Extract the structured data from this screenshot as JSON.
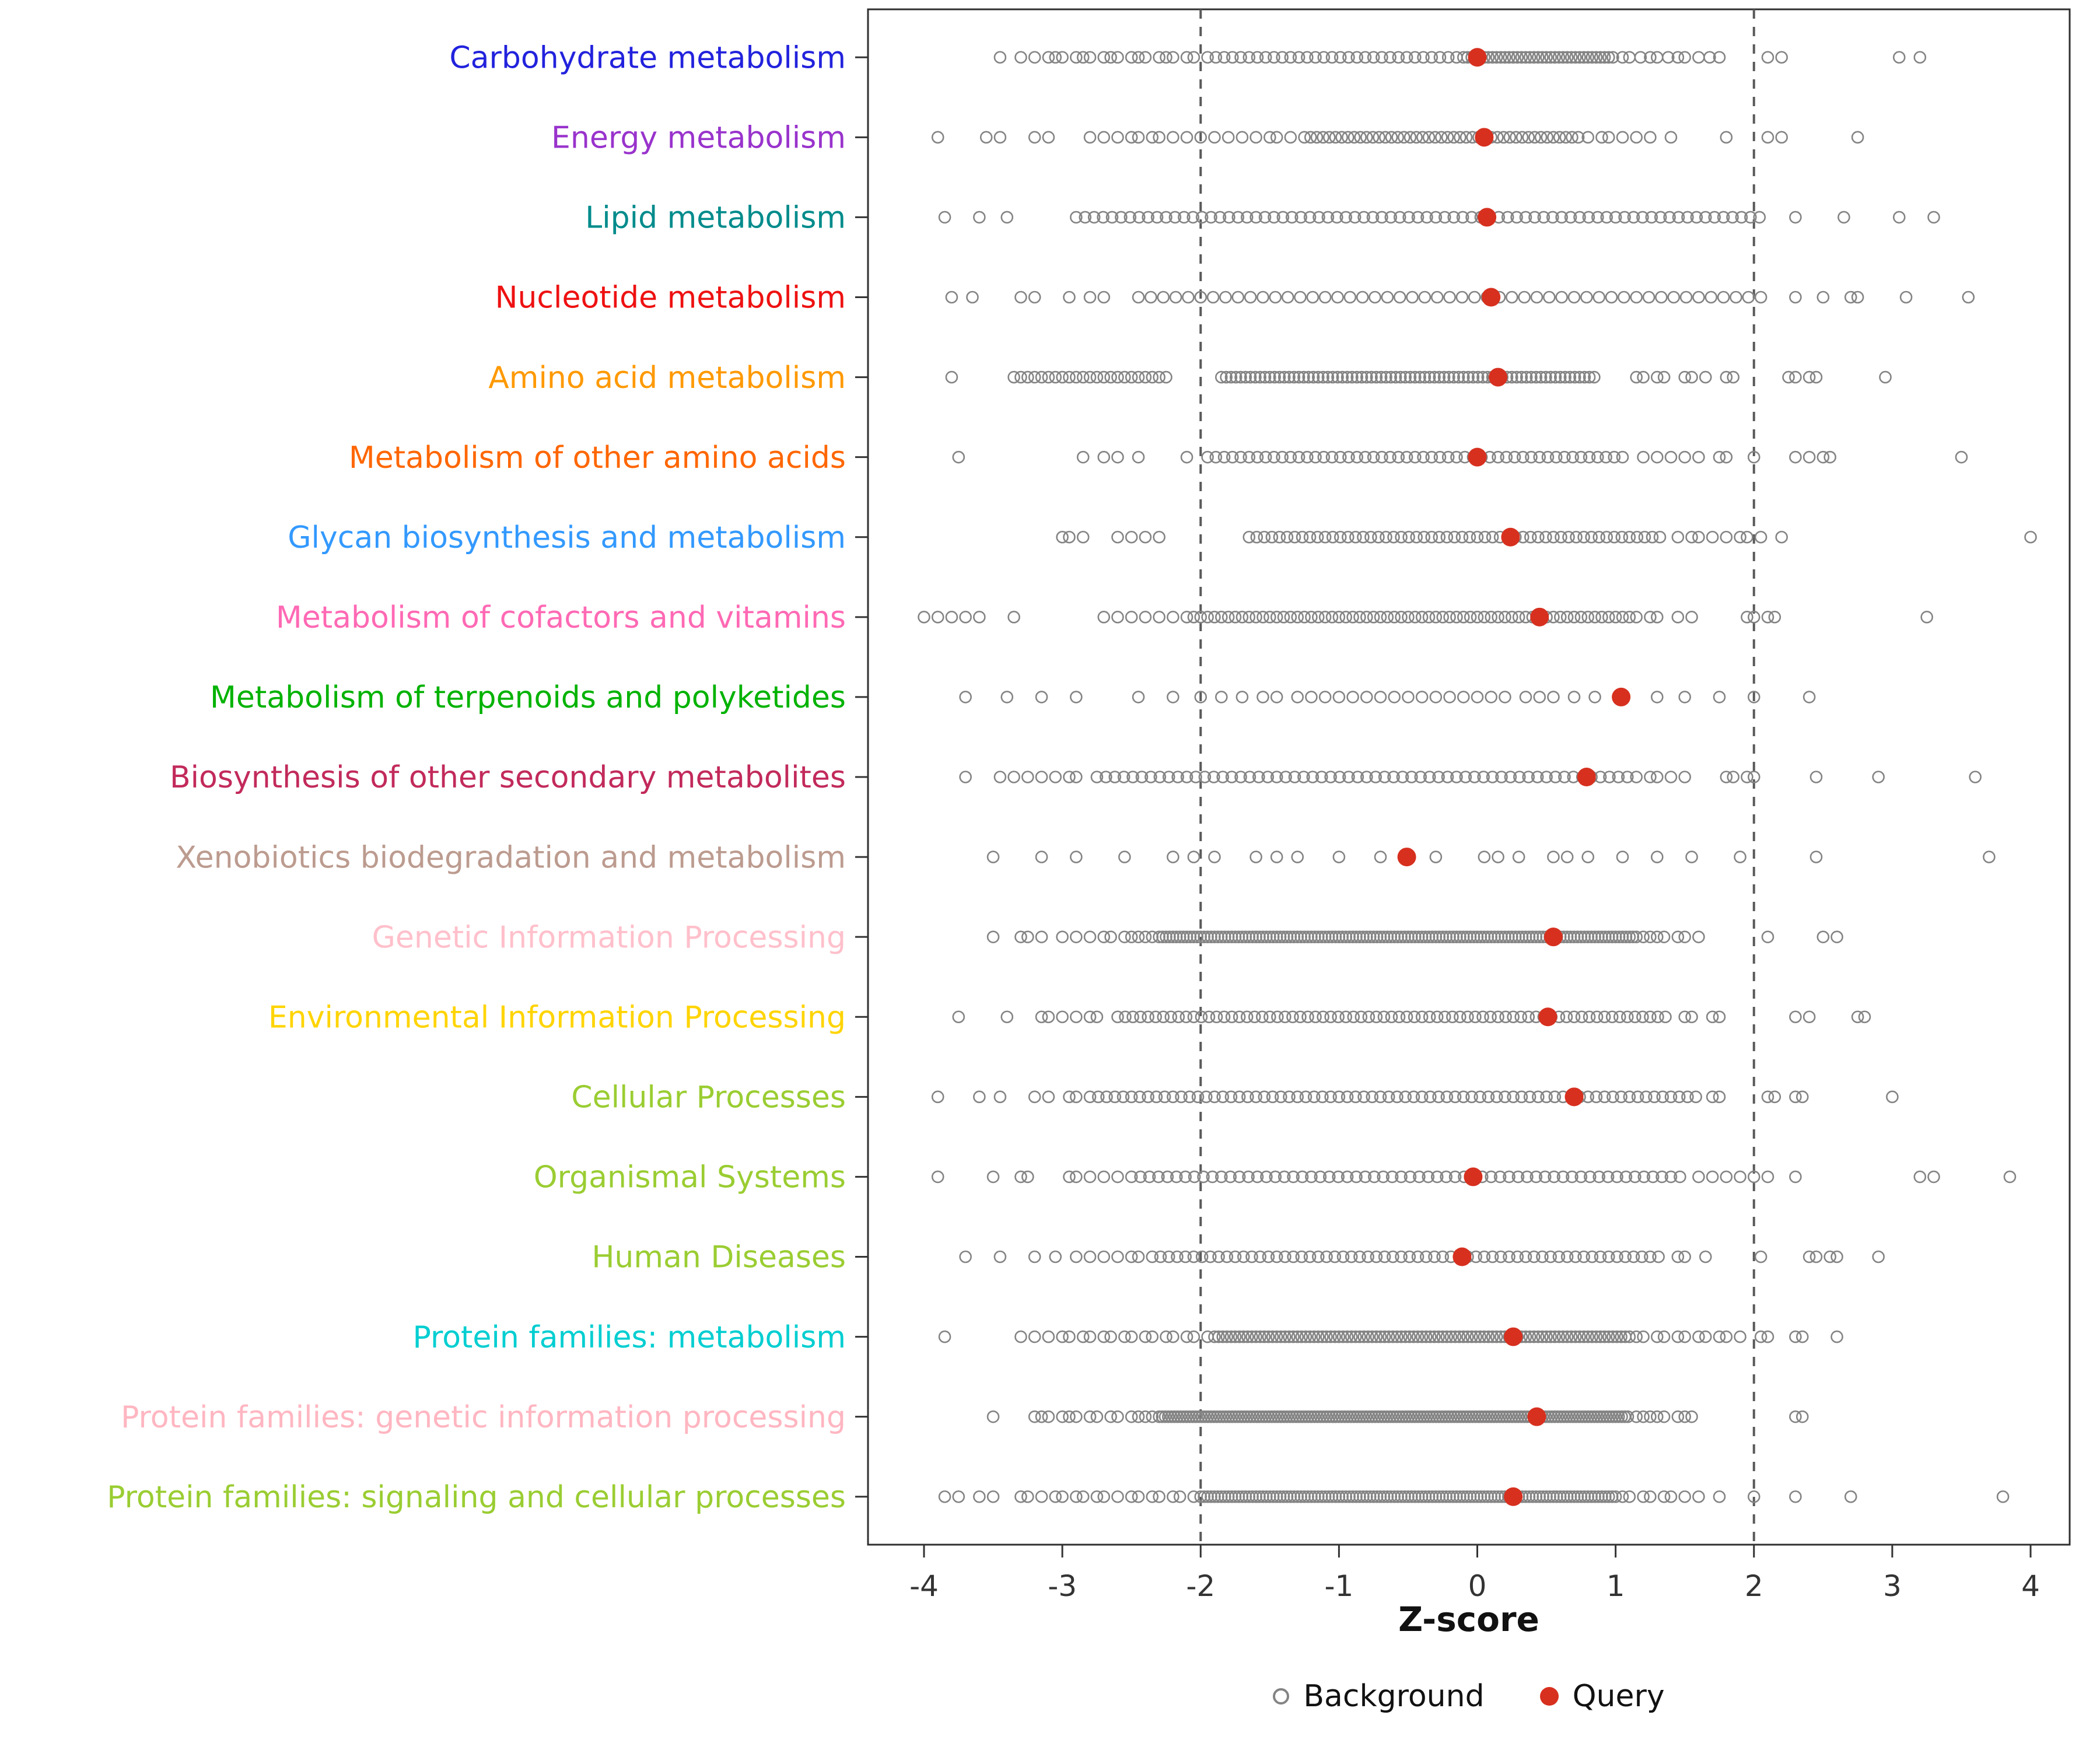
{
  "chart_data": {
    "type": "scatter",
    "title": "",
    "xlabel": "Z-score",
    "ylabel": "",
    "xlim": [
      -4.4,
      4.3
    ],
    "x_ticks": [
      -4,
      -3,
      -2,
      -1,
      0,
      1,
      2,
      3,
      4
    ],
    "reference_lines": [
      -2,
      2
    ],
    "grid": false,
    "legend_position": "bottom",
    "legend": {
      "background": "Background",
      "query": "Query"
    },
    "colors": {
      "background_point": "#848484",
      "query_point": "#D7301F",
      "reference_line": "#5A5A5A",
      "panel_border": "#2F2F2F",
      "axis_text": "#333333",
      "tick": "#333333"
    },
    "rows": [
      {
        "label": "Carbohydrate metabolism",
        "color": "#2222DD",
        "query": 0.0,
        "points": [
          -3.45,
          -3.3,
          -3.2,
          -3.1,
          -3.05,
          -3.0,
          -2.9,
          -2.85,
          -2.8,
          -2.7,
          -2.65,
          -2.6,
          -2.5,
          -2.45,
          -2.4,
          -2.3,
          -2.25,
          -2.2,
          -2.1,
          -2.05,
          1.05,
          1.1,
          1.18,
          1.25,
          1.3,
          1.38,
          1.45,
          1.5,
          1.6,
          1.68,
          1.75,
          2.1,
          2.2,
          3.05,
          3.2
        ],
        "bands": [
          [
            -1.95,
            -0.15,
            0.06
          ],
          [
            -0.1,
            1.0,
            0.03
          ]
        ]
      },
      {
        "label": "Energy metabolism",
        "color": "#9933CC",
        "query": 0.05,
        "points": [
          -3.9,
          -3.55,
          -3.45,
          -3.2,
          -3.1,
          -2.8,
          -2.7,
          -2.6,
          -2.5,
          -2.45,
          -2.35,
          -2.3,
          -2.2,
          -2.1,
          -2.0,
          -1.9,
          -1.8,
          -1.7,
          -1.6,
          -1.5,
          -1.45,
          -1.35,
          0.8,
          0.9,
          0.95,
          1.05,
          1.15,
          1.25,
          1.4,
          1.8,
          2.1,
          2.2,
          2.75
        ],
        "bands": [
          [
            -1.25,
            0.75,
            0.045
          ]
        ]
      },
      {
        "label": "Lipid metabolism",
        "color": "#008B8B",
        "query": 0.07,
        "points": [
          -3.85,
          -3.6,
          -3.4,
          2.3,
          2.65,
          3.05,
          3.3
        ],
        "bands": [
          [
            -2.9,
            2.1,
            0.065
          ]
        ]
      },
      {
        "label": "Nucleotide metabolism",
        "color": "#EE1111",
        "query": 0.1,
        "points": [
          -3.8,
          -3.65,
          -3.3,
          -3.2,
          -2.95,
          -2.8,
          -2.7,
          2.3,
          2.5,
          2.7,
          2.75,
          3.1,
          3.55
        ],
        "bands": [
          [
            -2.45,
            2.05,
            0.09
          ]
        ]
      },
      {
        "label": "Amino acid metabolism",
        "color": "#FF9900",
        "query": 0.15,
        "points": [
          -3.8,
          1.15,
          1.2,
          1.3,
          1.35,
          1.5,
          1.55,
          1.65,
          1.8,
          1.85,
          2.25,
          2.3,
          2.4,
          2.45,
          2.95
        ],
        "bands": [
          [
            -3.35,
            -2.25,
            0.05
          ],
          [
            -1.85,
            0.85,
            0.035
          ]
        ]
      },
      {
        "label": "Metabolism of other amino acids",
        "color": "#FF6600",
        "query": 0.0,
        "points": [
          -3.75,
          -2.85,
          -2.7,
          -2.6,
          -2.45,
          -2.1,
          1.2,
          1.3,
          1.4,
          1.5,
          1.6,
          1.75,
          1.8,
          2.0,
          2.3,
          2.4,
          2.5,
          2.55,
          3.5
        ],
        "bands": [
          [
            -1.95,
            1.1,
            0.06
          ]
        ]
      },
      {
        "label": "Glycan biosynthesis and metabolism",
        "color": "#3399FF",
        "query": 0.24,
        "points": [
          -3.0,
          -2.95,
          -2.85,
          -2.6,
          -2.5,
          -2.4,
          -2.3,
          1.45,
          1.55,
          1.6,
          1.7,
          1.8,
          1.9,
          1.95,
          2.05,
          2.2,
          4.0
        ],
        "bands": [
          [
            -1.65,
            1.35,
            0.055
          ]
        ]
      },
      {
        "label": "Metabolism of cofactors and vitamins",
        "color": "#FF69B4",
        "query": 0.45,
        "points": [
          -4.0,
          -3.9,
          -3.8,
          -3.7,
          -3.6,
          -3.35,
          -2.7,
          -2.6,
          -2.5,
          -2.4,
          -2.3,
          -2.2,
          1.15,
          1.25,
          1.3,
          1.45,
          1.55,
          1.95,
          2.0,
          2.1,
          2.15,
          3.25
        ],
        "bands": [
          [
            -2.1,
            1.1,
            0.05
          ]
        ]
      },
      {
        "label": "Metabolism of terpenoids and polyketides",
        "color": "#00B200",
        "query": 1.04,
        "points": [
          -3.7,
          -3.4,
          -3.15,
          -2.9,
          -2.45,
          -2.2,
          -2.0,
          -1.85,
          -1.7,
          -1.55,
          -1.45,
          -1.3,
          -1.2,
          -1.1,
          -1.0,
          -0.9,
          -0.8,
          -0.7,
          -0.6,
          -0.5,
          -0.4,
          -0.3,
          -0.2,
          -0.1,
          0.0,
          0.1,
          0.2,
          0.35,
          0.45,
          0.55,
          0.7,
          0.85,
          1.3,
          1.5,
          1.75,
          2.0,
          2.4
        ],
        "bands": []
      },
      {
        "label": "Biosynthesis of other secondary metabolites",
        "color": "#C22A5B",
        "query": 0.79,
        "points": [
          -3.7,
          -3.45,
          -3.35,
          -3.25,
          -3.15,
          -3.05,
          -2.95,
          -2.9,
          1.25,
          1.3,
          1.4,
          1.5,
          1.8,
          1.85,
          1.95,
          2.0,
          2.45,
          2.9,
          3.6
        ],
        "bands": [
          [
            -2.75,
            1.15,
            0.065
          ]
        ]
      },
      {
        "label": "Xenobiotics biodegradation and metabolism",
        "color": "#BC9B8F",
        "query": -0.51,
        "points": [
          -3.5,
          -3.15,
          -2.9,
          -2.55,
          -2.2,
          -2.05,
          -1.9,
          -1.6,
          -1.45,
          -1.3,
          -1.0,
          -0.7,
          -0.3,
          0.05,
          0.15,
          0.3,
          0.55,
          0.65,
          0.8,
          1.05,
          1.3,
          1.55,
          1.9,
          2.45,
          3.7
        ],
        "bands": []
      },
      {
        "label": "Genetic Information Processing",
        "color": "#FFC0CB",
        "query": 0.55,
        "points": [
          -3.5,
          -3.3,
          -3.25,
          -3.15,
          -3.0,
          -2.9,
          -2.8,
          -2.7,
          -2.65,
          -2.55,
          -2.5,
          -2.45,
          -2.4,
          -2.35,
          1.2,
          1.25,
          1.3,
          1.35,
          1.45,
          1.5,
          1.6,
          2.1,
          2.5,
          2.6
        ],
        "bands": [
          [
            -2.3,
            1.15,
            0.025
          ]
        ]
      },
      {
        "label": "Environmental Information Processing",
        "color": "#FFD400",
        "query": 0.51,
        "points": [
          -3.75,
          -3.4,
          -3.15,
          -3.1,
          -3.0,
          -2.9,
          -2.8,
          -2.75,
          1.5,
          1.55,
          1.7,
          1.75,
          2.3,
          2.4,
          2.75,
          2.8
        ],
        "bands": [
          [
            -2.6,
            1.4,
            0.055
          ]
        ]
      },
      {
        "label": "Cellular Processes",
        "color": "#9ACD32",
        "query": 0.7,
        "points": [
          -3.9,
          -3.6,
          -3.45,
          -3.2,
          -3.1,
          -2.95,
          -2.9,
          1.7,
          1.75,
          2.1,
          2.15,
          2.3,
          2.35,
          3.0
        ],
        "bands": [
          [
            -2.8,
            1.6,
            0.06
          ]
        ]
      },
      {
        "label": "Organismal Systems",
        "color": "#9ACD32",
        "query": -0.03,
        "points": [
          -3.9,
          -3.5,
          -3.3,
          -3.25,
          -2.95,
          -2.9,
          -2.8,
          -2.7,
          -2.6,
          1.6,
          1.7,
          1.8,
          1.9,
          2.0,
          2.1,
          2.3,
          3.2,
          3.3,
          3.85
        ],
        "bands": [
          [
            -2.5,
            1.5,
            0.065
          ]
        ]
      },
      {
        "label": "Human Diseases",
        "color": "#9ACD32",
        "query": -0.11,
        "points": [
          -3.7,
          -3.45,
          -3.2,
          -3.05,
          -2.9,
          -2.8,
          -2.7,
          -2.6,
          -2.5,
          -2.45,
          1.45,
          1.5,
          1.65,
          2.05,
          2.4,
          2.45,
          2.55,
          2.6,
          2.9
        ],
        "bands": [
          [
            -2.35,
            1.35,
            0.06
          ]
        ]
      },
      {
        "label": "Protein families: metabolism",
        "color": "#00CED1",
        "query": 0.26,
        "points": [
          -3.85,
          -3.3,
          -3.2,
          -3.1,
          -3.0,
          -2.95,
          -2.85,
          -2.8,
          -2.7,
          -2.65,
          -2.55,
          -2.5,
          -2.4,
          -2.35,
          -2.25,
          -2.2,
          -2.1,
          -2.05,
          -1.95,
          1.15,
          1.2,
          1.3,
          1.35,
          1.45,
          1.5,
          1.6,
          1.65,
          1.75,
          1.8,
          1.9,
          2.05,
          2.1,
          2.3,
          2.35,
          2.6
        ],
        "bands": [
          [
            -1.9,
            1.1,
            0.03
          ]
        ]
      },
      {
        "label": "Protein families: genetic information processing",
        "color": "#FFB6C1",
        "query": 0.43,
        "points": [
          -3.5,
          -3.2,
          -3.15,
          -3.1,
          -3.0,
          -2.95,
          -2.9,
          -2.8,
          -2.75,
          -2.65,
          -2.6,
          -2.5,
          -2.45,
          -2.4,
          -2.35,
          1.15,
          1.2,
          1.25,
          1.3,
          1.35,
          1.45,
          1.5,
          1.55,
          2.3,
          2.35
        ],
        "bands": [
          [
            -2.3,
            1.1,
            0.022
          ]
        ]
      },
      {
        "label": "Protein families: signaling and cellular processes",
        "color": "#9ACD32",
        "query": 0.26,
        "points": [
          -3.85,
          -3.75,
          -3.6,
          -3.5,
          -3.3,
          -3.25,
          -3.15,
          -3.05,
          -3.0,
          -2.9,
          -2.85,
          -2.75,
          -2.7,
          -2.6,
          -2.5,
          -2.45,
          -2.35,
          -2.3,
          -2.2,
          -2.15,
          -2.05,
          1.05,
          1.1,
          1.2,
          1.25,
          1.35,
          1.4,
          1.5,
          1.6,
          1.75,
          2.0,
          2.3,
          2.7,
          3.8
        ],
        "bands": [
          [
            -2.0,
            1.0,
            0.025
          ]
        ]
      }
    ]
  }
}
